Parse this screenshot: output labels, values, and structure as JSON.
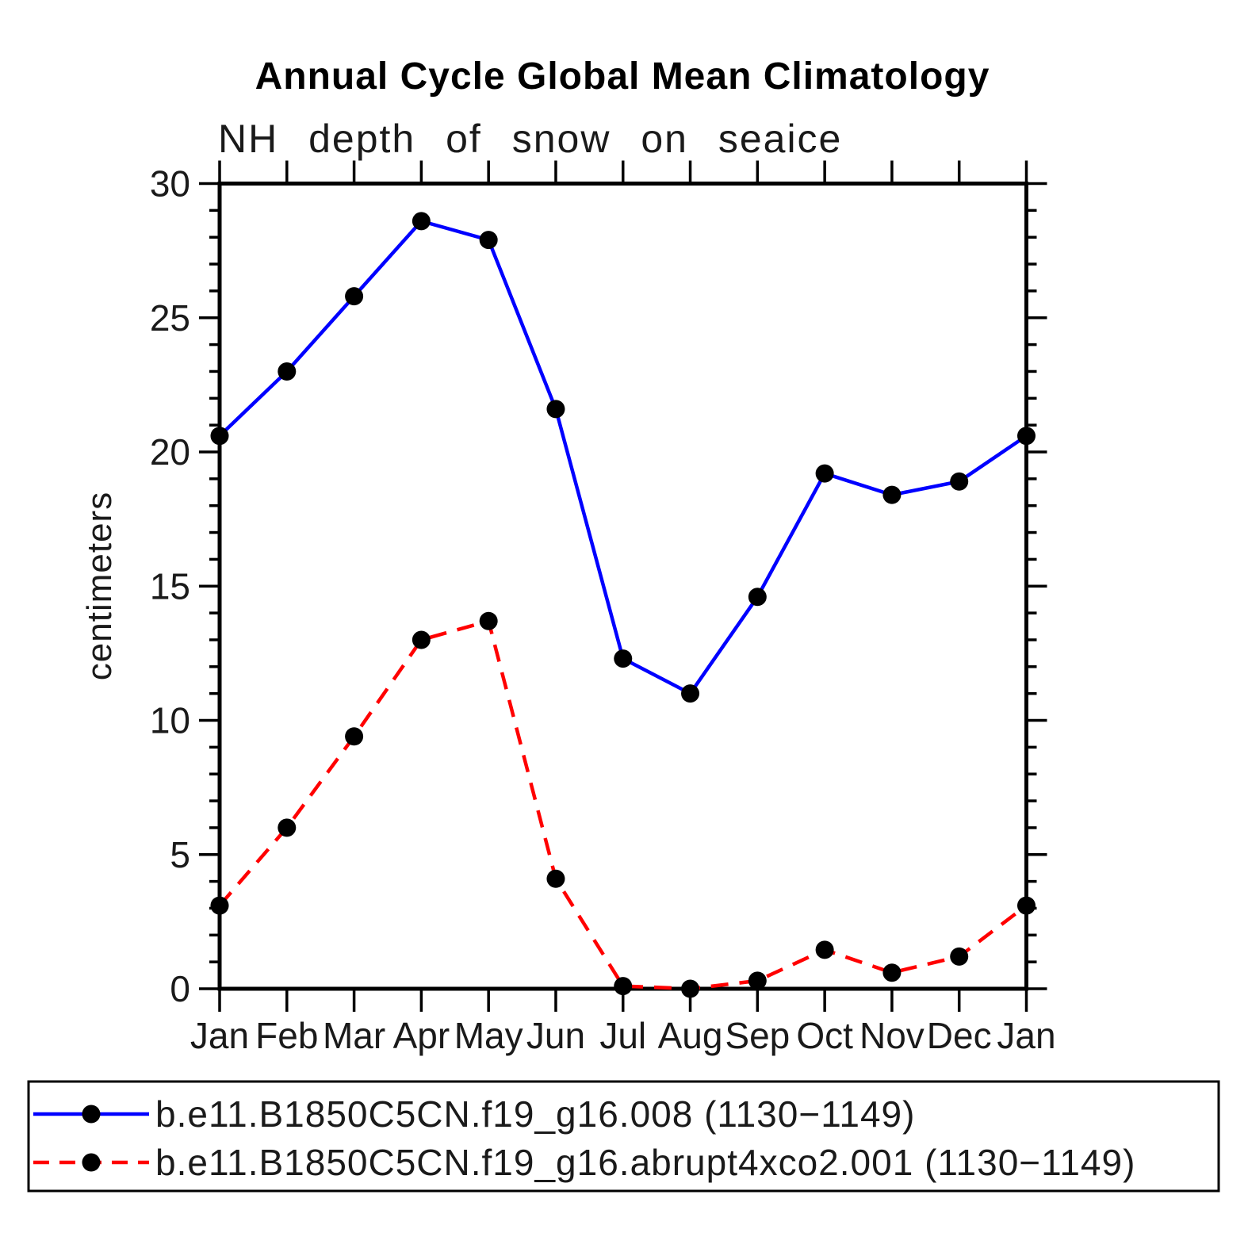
{
  "chart_data": {
    "type": "line",
    "title": "Annual Cycle Global Mean Climatology",
    "subtitle": "NH depth of snow on seaice",
    "ylabel": "centimeters",
    "xlabel": "",
    "x_tick_labels": [
      "Jan",
      "Feb",
      "Mar",
      "Apr",
      "May",
      "Jun",
      "Jul",
      "Aug",
      "Sep",
      "Oct",
      "Nov",
      "Dec",
      "Jan"
    ],
    "y_ticks": [
      0,
      5,
      10,
      15,
      20,
      25,
      30
    ],
    "y_tick_labels": [
      "0",
      "5",
      "10",
      "15",
      "20",
      "25",
      "30"
    ],
    "ylim": [
      0,
      30
    ],
    "y_minor_step": 1,
    "grid": false,
    "legend_position": "bottom",
    "background_color": "#ffffff",
    "axis_color": "#000000",
    "marker_color": "#000000",
    "series": [
      {
        "name": "b.e11.B1850C5CN.f19_g16.008 (1130−1149)",
        "color": "#0000ff",
        "style": "solid",
        "marker": "circle",
        "values": [
          20.6,
          23.0,
          25.8,
          28.6,
          27.9,
          21.6,
          12.3,
          11.0,
          14.6,
          19.2,
          18.4,
          18.9,
          20.6
        ]
      },
      {
        "name": "b.e11.B1850C5CN.f19_g16.abrupt4xco2.001 (1130−1149)",
        "color": "#ff0000",
        "style": "dashed",
        "marker": "circle",
        "values": [
          3.1,
          6.0,
          9.4,
          13.0,
          13.7,
          4.1,
          0.1,
          0.0,
          0.3,
          1.45,
          0.6,
          1.2,
          3.1
        ]
      }
    ]
  }
}
